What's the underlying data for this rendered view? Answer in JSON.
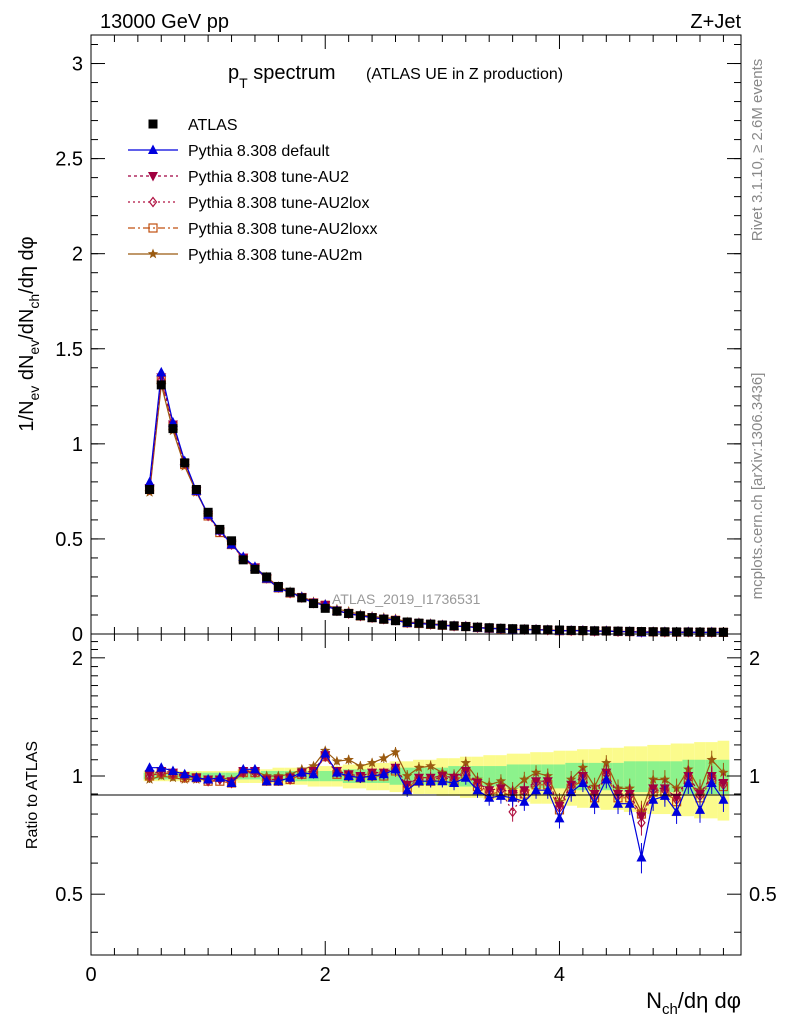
{
  "header": {
    "energy_label": "13000 GeV pp",
    "process_label": "Z+Jet"
  },
  "title": {
    "main": "p",
    "main_sub": "T",
    "main_rest": " spectrum",
    "sub": "(ATLAS UE in Z production)"
  },
  "side_labels": {
    "rivet": "Rivet 3.1.10, ≥ 2.6M events",
    "mcplots": "mcplots.cern.ch [arXiv:1306.3436]"
  },
  "watermark": "ATLAS_2019_I1736531",
  "colors": {
    "data": "#000000",
    "default": "#0000dd",
    "au2": "#a00040",
    "au2lox": "#b01040",
    "au2loxx": "#c05010",
    "au2m": "#9a5a10",
    "band_inner": "#8cf28c",
    "band_outer": "#fbfb8c"
  },
  "chart_data": [
    {
      "panel": "main",
      "type": "scatter",
      "ylabel": "1/N_ev dN_ev/dN_ch/dη dφ",
      "xlim": [
        0,
        5.55
      ],
      "ylim": [
        0,
        3.15
      ],
      "yticks": [
        0,
        0.5,
        1,
        1.5,
        2,
        2.5,
        3
      ],
      "ytick_labels": [
        "0",
        "0.5",
        "1",
        "1.5",
        "2",
        "2.5",
        "3"
      ],
      "x": [
        0.5,
        0.6,
        0.7,
        0.8,
        0.9,
        1.0,
        1.1,
        1.2,
        1.3,
        1.4,
        1.5,
        1.6,
        1.7,
        1.8,
        1.9,
        2.0,
        2.1,
        2.2,
        2.3,
        2.4,
        2.5,
        2.6,
        2.7,
        2.8,
        2.9,
        3.0,
        3.1,
        3.2,
        3.3,
        3.4,
        3.5,
        3.6,
        3.7,
        3.8,
        3.9,
        4.0,
        4.1,
        4.2,
        4.3,
        4.4,
        4.5,
        4.6,
        4.7,
        4.8,
        4.9,
        5.0,
        5.1,
        5.2,
        5.3,
        5.4
      ],
      "ref_values": [
        0.76,
        1.31,
        1.08,
        0.9,
        0.76,
        0.64,
        0.55,
        0.49,
        0.39,
        0.34,
        0.3,
        0.25,
        0.22,
        0.19,
        0.16,
        0.135,
        0.12,
        0.108,
        0.096,
        0.086,
        0.078,
        0.07,
        0.063,
        0.057,
        0.052,
        0.047,
        0.043,
        0.039,
        0.036,
        0.033,
        0.03,
        0.028,
        0.026,
        0.024,
        0.022,
        0.021,
        0.019,
        0.018,
        0.017,
        0.016,
        0.015,
        0.014,
        0.013,
        0.012,
        0.0115,
        0.011,
        0.0105,
        0.01,
        0.0095,
        0.009
      ],
      "legend": [
        {
          "key": "data",
          "label": "ATLAS",
          "marker": "square"
        },
        {
          "key": "default",
          "label": "Pythia 8.308 default",
          "marker": "triangle-up"
        },
        {
          "key": "au2",
          "label": "Pythia 8.308 tune-AU2",
          "marker": "triangle-down"
        },
        {
          "key": "au2lox",
          "label": "Pythia 8.308 tune-AU2lox",
          "marker": "diamond-open"
        },
        {
          "key": "au2loxx",
          "label": "Pythia 8.308 tune-AU2loxx",
          "marker": "square-open"
        },
        {
          "key": "au2m",
          "label": "Pythia 8.308 tune-AU2m",
          "marker": "star"
        }
      ]
    },
    {
      "panel": "ratio",
      "type": "line",
      "xlabel": "N_ch/dη dφ",
      "ylabel": "Ratio to ATLAS",
      "xlim": [
        0,
        5.55
      ],
      "ylim": [
        0.35,
        2.3
      ],
      "xticks": [
        0,
        2,
        4
      ],
      "xtick_labels": [
        "0",
        "2",
        "4"
      ],
      "yticks": [
        0.5,
        1,
        2
      ],
      "ytick_labels": [
        "0.5",
        "1",
        "2"
      ],
      "x": [
        0.5,
        0.6,
        0.7,
        0.8,
        0.9,
        1.0,
        1.1,
        1.2,
        1.3,
        1.4,
        1.5,
        1.6,
        1.7,
        1.8,
        1.9,
        2.0,
        2.1,
        2.2,
        2.3,
        2.4,
        2.5,
        2.6,
        2.7,
        2.8,
        2.9,
        3.0,
        3.1,
        3.2,
        3.3,
        3.4,
        3.5,
        3.6,
        3.7,
        3.8,
        3.9,
        4.0,
        4.1,
        4.2,
        4.3,
        4.4,
        4.5,
        4.6,
        4.7,
        4.8,
        4.9,
        5.0,
        5.1,
        5.2,
        5.3,
        5.4
      ],
      "band_inner": [
        0.02,
        0.02,
        0.02,
        0.02,
        0.02,
        0.02,
        0.02,
        0.02,
        0.02,
        0.02,
        0.03,
        0.03,
        0.03,
        0.03,
        0.03,
        0.03,
        0.03,
        0.04,
        0.04,
        0.04,
        0.04,
        0.05,
        0.05,
        0.05,
        0.05,
        0.05,
        0.06,
        0.06,
        0.06,
        0.06,
        0.06,
        0.07,
        0.07,
        0.07,
        0.07,
        0.07,
        0.08,
        0.08,
        0.08,
        0.08,
        0.08,
        0.09,
        0.09,
        0.09,
        0.09,
        0.09,
        0.1,
        0.1,
        0.1,
        0.1
      ],
      "band_outer": [
        0.03,
        0.03,
        0.03,
        0.03,
        0.03,
        0.03,
        0.03,
        0.03,
        0.04,
        0.04,
        0.04,
        0.05,
        0.05,
        0.05,
        0.06,
        0.06,
        0.06,
        0.07,
        0.07,
        0.08,
        0.08,
        0.09,
        0.09,
        0.1,
        0.1,
        0.11,
        0.11,
        0.12,
        0.12,
        0.13,
        0.13,
        0.14,
        0.14,
        0.15,
        0.15,
        0.16,
        0.16,
        0.17,
        0.17,
        0.18,
        0.18,
        0.19,
        0.19,
        0.2,
        0.2,
        0.21,
        0.21,
        0.22,
        0.22,
        0.23
      ],
      "series": [
        {
          "key": "default",
          "name": "Pythia 8.308 default",
          "marker": "triangle-up",
          "values": [
            1.05,
            1.05,
            1.03,
            1.01,
            0.99,
            0.98,
            0.99,
            0.96,
            1.04,
            1.04,
            0.97,
            0.97,
            0.99,
            1.02,
            1.01,
            1.14,
            1.02,
            1.0,
            0.99,
            1.0,
            1.01,
            1.04,
            0.92,
            0.97,
            0.97,
            0.97,
            0.96,
            0.99,
            0.92,
            0.88,
            0.89,
            0.88,
            0.86,
            0.92,
            0.92,
            0.78,
            0.91,
            0.96,
            0.85,
            0.98,
            0.85,
            0.85,
            0.62,
            0.87,
            0.89,
            0.81,
            0.96,
            0.82,
            0.96,
            0.87
          ]
        },
        {
          "key": "au2",
          "name": "Pythia 8.308 tune-AU2",
          "marker": "triangle-down",
          "values": [
            1.01,
            1.03,
            1.02,
            1.0,
            0.99,
            0.98,
            0.98,
            0.97,
            1.03,
            1.03,
            0.98,
            0.98,
            0.99,
            1.02,
            1.03,
            1.13,
            1.03,
            1.01,
            1.0,
            1.02,
            1.02,
            1.05,
            0.95,
            0.99,
            0.99,
            1.0,
            0.99,
            1.03,
            0.96,
            0.92,
            0.93,
            0.9,
            0.92,
            0.97,
            0.97,
            0.84,
            0.95,
            1.0,
            0.9,
            1.02,
            0.9,
            0.9,
            0.79,
            0.93,
            0.93,
            0.88,
            1.0,
            0.9,
            1.0,
            0.96
          ]
        },
        {
          "key": "au2lox",
          "name": "Pythia 8.308 tune-AU2lox",
          "marker": "diamond-open",
          "values": [
            1.0,
            1.02,
            1.01,
            1.0,
            0.99,
            0.97,
            0.98,
            0.96,
            1.02,
            1.02,
            0.98,
            0.98,
            0.98,
            1.01,
            1.02,
            1.12,
            1.02,
            1.0,
            0.99,
            1.01,
            1.01,
            1.04,
            0.94,
            0.98,
            0.98,
            0.99,
            0.98,
            1.02,
            0.95,
            0.91,
            0.92,
            0.81,
            0.91,
            0.96,
            0.96,
            0.83,
            0.94,
            0.99,
            0.89,
            1.01,
            0.89,
            0.89,
            0.76,
            0.92,
            0.92,
            0.87,
            0.99,
            0.89,
            0.99,
            0.95
          ]
        },
        {
          "key": "au2loxx",
          "name": "Pythia 8.308 tune-AU2loxx",
          "marker": "square-open",
          "values": [
            1.0,
            1.02,
            1.01,
            0.99,
            0.99,
            0.97,
            0.97,
            0.96,
            1.02,
            1.02,
            0.97,
            0.97,
            0.98,
            1.01,
            1.02,
            1.12,
            1.01,
            1.0,
            0.99,
            1.0,
            1.0,
            1.03,
            0.93,
            0.97,
            0.97,
            0.98,
            0.97,
            1.01,
            0.94,
            0.9,
            0.91,
            0.89,
            0.9,
            0.95,
            0.95,
            0.82,
            0.93,
            0.98,
            0.88,
            1.0,
            0.88,
            0.88,
            0.8,
            0.91,
            0.91,
            0.86,
            0.98,
            0.88,
            0.98,
            0.94
          ]
        },
        {
          "key": "au2m",
          "name": "Pythia 8.308 tune-AU2m",
          "marker": "star",
          "values": [
            0.98,
            1.0,
            0.99,
            0.98,
            0.98,
            0.98,
            0.99,
            0.98,
            1.02,
            1.03,
            1.0,
            1.0,
            1.01,
            1.04,
            1.06,
            1.16,
            1.09,
            1.1,
            1.06,
            1.08,
            1.11,
            1.15,
            1.0,
            1.05,
            1.06,
            1.02,
            1.0,
            1.08,
            0.98,
            0.95,
            0.97,
            0.92,
            0.98,
            1.02,
            1.0,
            0.86,
            0.98,
            1.05,
            0.94,
            1.08,
            0.93,
            0.93,
            0.81,
            0.98,
            0.98,
            0.93,
            1.04,
            0.92,
            1.1,
            1.02
          ]
        }
      ]
    }
  ]
}
